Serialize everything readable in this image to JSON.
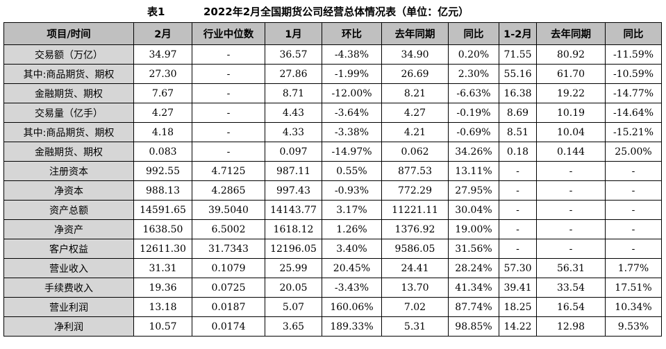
{
  "caption": {
    "label": "表1",
    "title": "2022年2月全国期货公司经营总体情况表（单位：亿元）"
  },
  "headers": [
    "项目/时间",
    "2月",
    "行业中位数",
    "1月",
    "环比",
    "去年同期",
    "同比",
    "1-2月",
    "去年同期",
    "同比"
  ],
  "rows": [
    {
      "label": "交易额（万亿）",
      "cells": [
        "34.97",
        "-",
        "36.57",
        "-4.38%",
        "34.90",
        "0.20%",
        "71.55",
        "80.92",
        "-11.59%"
      ]
    },
    {
      "label": "其中:商品期货、期权",
      "cells": [
        "27.30",
        "-",
        "27.86",
        "-1.99%",
        "26.69",
        "2.30%",
        "55.16",
        "61.70",
        "-10.59%"
      ]
    },
    {
      "label": "金融期货、期权",
      "cells": [
        "7.67",
        "-",
        "8.71",
        "-12.00%",
        "8.21",
        "-6.63%",
        "16.38",
        "19.22",
        "-14.77%"
      ]
    },
    {
      "label": "交易量（亿手）",
      "cells": [
        "4.27",
        "-",
        "4.43",
        "-3.64%",
        "4.27",
        "-0.19%",
        "8.69",
        "10.19",
        "-14.64%"
      ]
    },
    {
      "label": "其中:商品期货、期权",
      "cells": [
        "4.18",
        "-",
        "4.33",
        "-3.38%",
        "4.21",
        "-0.69%",
        "8.51",
        "10.04",
        "-15.21%"
      ]
    },
    {
      "label": "金融期货、期权",
      "cells": [
        "0.083",
        "-",
        "0.097",
        "-14.97%",
        "0.062",
        "34.26%",
        "0.18",
        "0.144",
        "25.00%"
      ]
    },
    {
      "label": "注册资本",
      "cells": [
        "992.55",
        "4.7125",
        "987.11",
        "0.55%",
        "877.53",
        "13.11%",
        "-",
        "-",
        "-"
      ]
    },
    {
      "label": "净资本",
      "cells": [
        "988.13",
        "4.2865",
        "997.43",
        "-0.93%",
        "772.29",
        "27.95%",
        "-",
        "-",
        "-"
      ]
    },
    {
      "label": "资产总额",
      "cells": [
        "14591.65",
        "39.5040",
        "14143.77",
        "3.17%",
        "11221.11",
        "30.04%",
        "-",
        "-",
        "-"
      ]
    },
    {
      "label": "净资产",
      "cells": [
        "1638.50",
        "6.5002",
        "1618.12",
        "1.26%",
        "1376.92",
        "19.00%",
        "-",
        "-",
        "-"
      ]
    },
    {
      "label": "客户权益",
      "cells": [
        "12611.30",
        "31.7343",
        "12196.05",
        "3.40%",
        "9586.05",
        "31.56%",
        "-",
        "-",
        "-"
      ]
    },
    {
      "label": "营业收入",
      "cells": [
        "31.31",
        "0.1079",
        "25.99",
        "20.45%",
        "24.41",
        "28.24%",
        "57.30",
        "56.31",
        "1.77%"
      ]
    },
    {
      "label": "手续费收入",
      "cells": [
        "19.36",
        "0.0725",
        "20.05",
        "-3.43%",
        "13.70",
        "41.34%",
        "39.41",
        "33.54",
        "17.51%"
      ]
    },
    {
      "label": "营业利润",
      "cells": [
        "13.18",
        "0.0187",
        "5.07",
        "160.06%",
        "7.02",
        "87.74%",
        "18.25",
        "16.54",
        "10.34%"
      ]
    },
    {
      "label": "净利润",
      "cells": [
        "10.57",
        "0.0174",
        "3.65",
        "189.33%",
        "5.31",
        "98.85%",
        "14.22",
        "12.98",
        "9.53%"
      ]
    }
  ]
}
